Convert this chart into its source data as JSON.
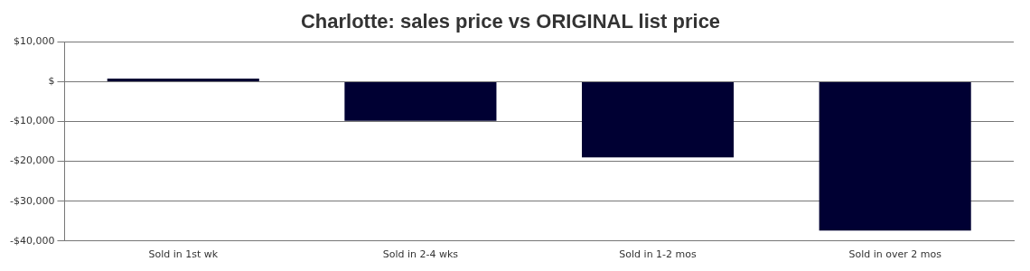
{
  "chart_data": {
    "type": "bar",
    "title": "Charlotte: sales price vs ORIGINAL list price",
    "categories": [
      "Sold in 1st wk",
      "Sold in 2-4 wks",
      "Sold in 1-2 mos",
      "Sold in over 2 mos"
    ],
    "values": [
      800,
      -9800,
      -19000,
      -37400
    ],
    "color": "#000033",
    "ylim": [
      -40000,
      10000
    ],
    "yticks": [
      {
        "value": -40000,
        "label": "-$40,000"
      },
      {
        "value": -30000,
        "label": "-$30,000"
      },
      {
        "value": -20000,
        "label": "-$20,000"
      },
      {
        "value": -10000,
        "label": "-$10,000"
      },
      {
        "value": 0,
        "label": "$"
      },
      {
        "value": 10000,
        "label": "$10,000"
      }
    ],
    "grid": "y",
    "legend": false
  }
}
